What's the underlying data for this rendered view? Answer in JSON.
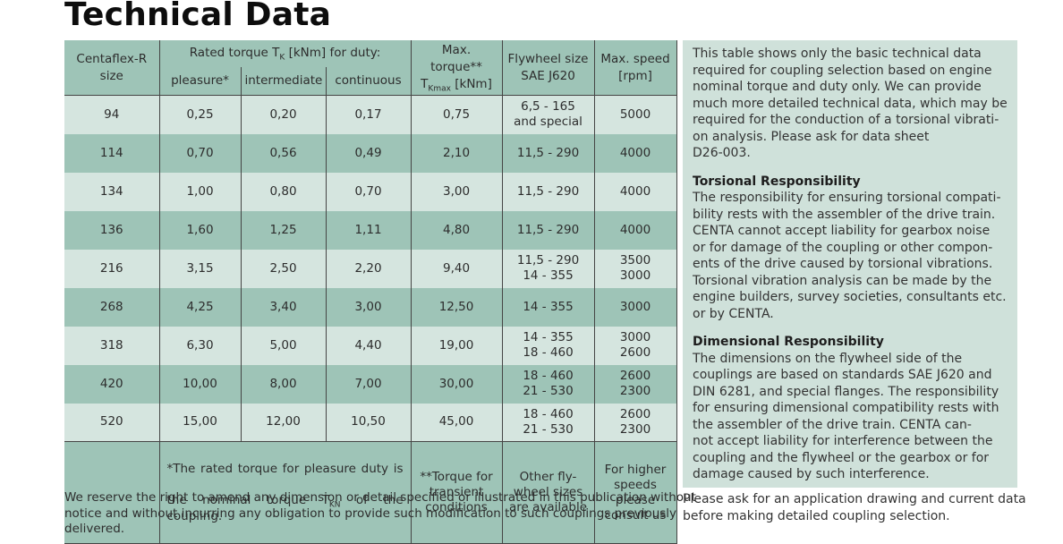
{
  "page": {
    "title": "Technical Data"
  },
  "colors": {
    "header_teal": "#9ec4b7",
    "row_light": "#d5e5df",
    "panel_bg": "#cfe1da",
    "border": "#454545"
  },
  "table": {
    "header": {
      "size_lines": [
        "Centaflex-R",
        "size"
      ],
      "rated_torque": {
        "pre": "Rated torque T",
        "sub": "K",
        "post": " [kNm] for duty:"
      },
      "duty_columns": [
        "pleasure*",
        "intermediate",
        "continuous"
      ],
      "max_torque": {
        "line1": "Max. torque**",
        "pre": "T",
        "sub": "Kmax",
        "post": " [kNm]"
      },
      "flywheel_lines": [
        "Flywheel size",
        "SAE J620"
      ],
      "max_speed_lines": [
        "Max. speed",
        "[rpm]"
      ]
    },
    "rows": [
      {
        "cells": [
          "94",
          "0,25",
          "0,20",
          "0,17",
          "0,75",
          [
            "6,5 - 165",
            "and special"
          ],
          "5000"
        ]
      },
      {
        "cells": [
          "114",
          "0,70",
          "0,56",
          "0,49",
          "2,10",
          "11,5 - 290",
          "4000"
        ]
      },
      {
        "cells": [
          "134",
          "1,00",
          "0,80",
          "0,70",
          "3,00",
          "11,5 - 290",
          "4000"
        ]
      },
      {
        "cells": [
          "136",
          "1,60",
          "1,25",
          "1,11",
          "4,80",
          "11,5 - 290",
          "4000"
        ]
      },
      {
        "cells": [
          "216",
          "3,15",
          "2,50",
          "2,20",
          "9,40",
          [
            "11,5 - 290",
            "14 - 355"
          ],
          [
            "3500",
            "3000"
          ]
        ]
      },
      {
        "cells": [
          "268",
          "4,25",
          "3,40",
          "3,00",
          "12,50",
          "14 - 355",
          "3000"
        ]
      },
      {
        "cells": [
          "318",
          "6,30",
          "5,00",
          "4,40",
          "19,00",
          [
            "14 - 355",
            "18 - 460"
          ],
          [
            "3000",
            "2600"
          ]
        ]
      },
      {
        "cells": [
          "420",
          "10,00",
          "8,00",
          "7,00",
          "30,00",
          [
            "18 - 460",
            "21 - 530"
          ],
          [
            "2600",
            "2300"
          ]
        ]
      },
      {
        "cells": [
          "520",
          "15,00",
          "12,00",
          "10,50",
          "45,00",
          [
            "18 - 460",
            "21 - 530"
          ],
          [
            "2600",
            "2300"
          ]
        ]
      }
    ],
    "footnotes": {
      "pleasure_note": {
        "line1": "*The rated torque for pleasure duty is",
        "line2_pre": "the nominal torque T",
        "line2_sub": "KN",
        "line2_post": " of the coupling."
      },
      "torque_note_lines": [
        "**Torque for",
        "transient",
        "conditions"
      ],
      "flywheel_note_lines": [
        "Other fly-",
        "wheel sizes",
        "are available"
      ],
      "speed_note_lines": [
        "For higher",
        "speeds please",
        "consult us"
      ]
    }
  },
  "panel": {
    "intro_lines": [
      "This table shows only the basic technical data",
      "required for coupling selection based on engine",
      "nominal torque and duty only. We can provide",
      "much more detailed technical data, which may be",
      "required for the conduction of a torsional vibrati-",
      "on analysis. Please ask for data sheet",
      "D26-003."
    ],
    "torsional": {
      "heading": "Torsional Responsibility",
      "lines": [
        "The responsibility for ensuring torsional compati-",
        "bility rests with the assembler of the drive train.",
        "CENTA cannot accept liability for gearbox noise",
        "or for damage of the coupling or other compon-",
        "ents of the drive caused by torsional vibrations.",
        "Torsional vibration analysis can be made by the",
        "engine builders, survey societies, consultants etc.",
        "or by CENTA."
      ]
    },
    "dimensional": {
      "heading": "Dimensional Responsibility",
      "lines": [
        "The dimensions on the flywheel side of the",
        "couplings are based on standards SAE J620 and",
        "DIN 6281, and special flanges. The responsibility",
        "for ensuring dimensional compatibility rests with",
        "the assembler of the drive train. CENTA can-",
        "not accept liability for interference between the",
        "coupling and the flywheel or the gearbox or for",
        "damage caused by such interference."
      ]
    }
  },
  "footer_notes": {
    "disclaimer_lines": [
      "We reserve the right to amend any dimension or detail specified or illustrated in this publication without",
      "notice and without incurring any obligation to provide such modification to such couplings previously",
      "delivered."
    ],
    "application_lines": [
      "Please ask for an application drawing and current data",
      "before making detailed coupling selection."
    ]
  }
}
